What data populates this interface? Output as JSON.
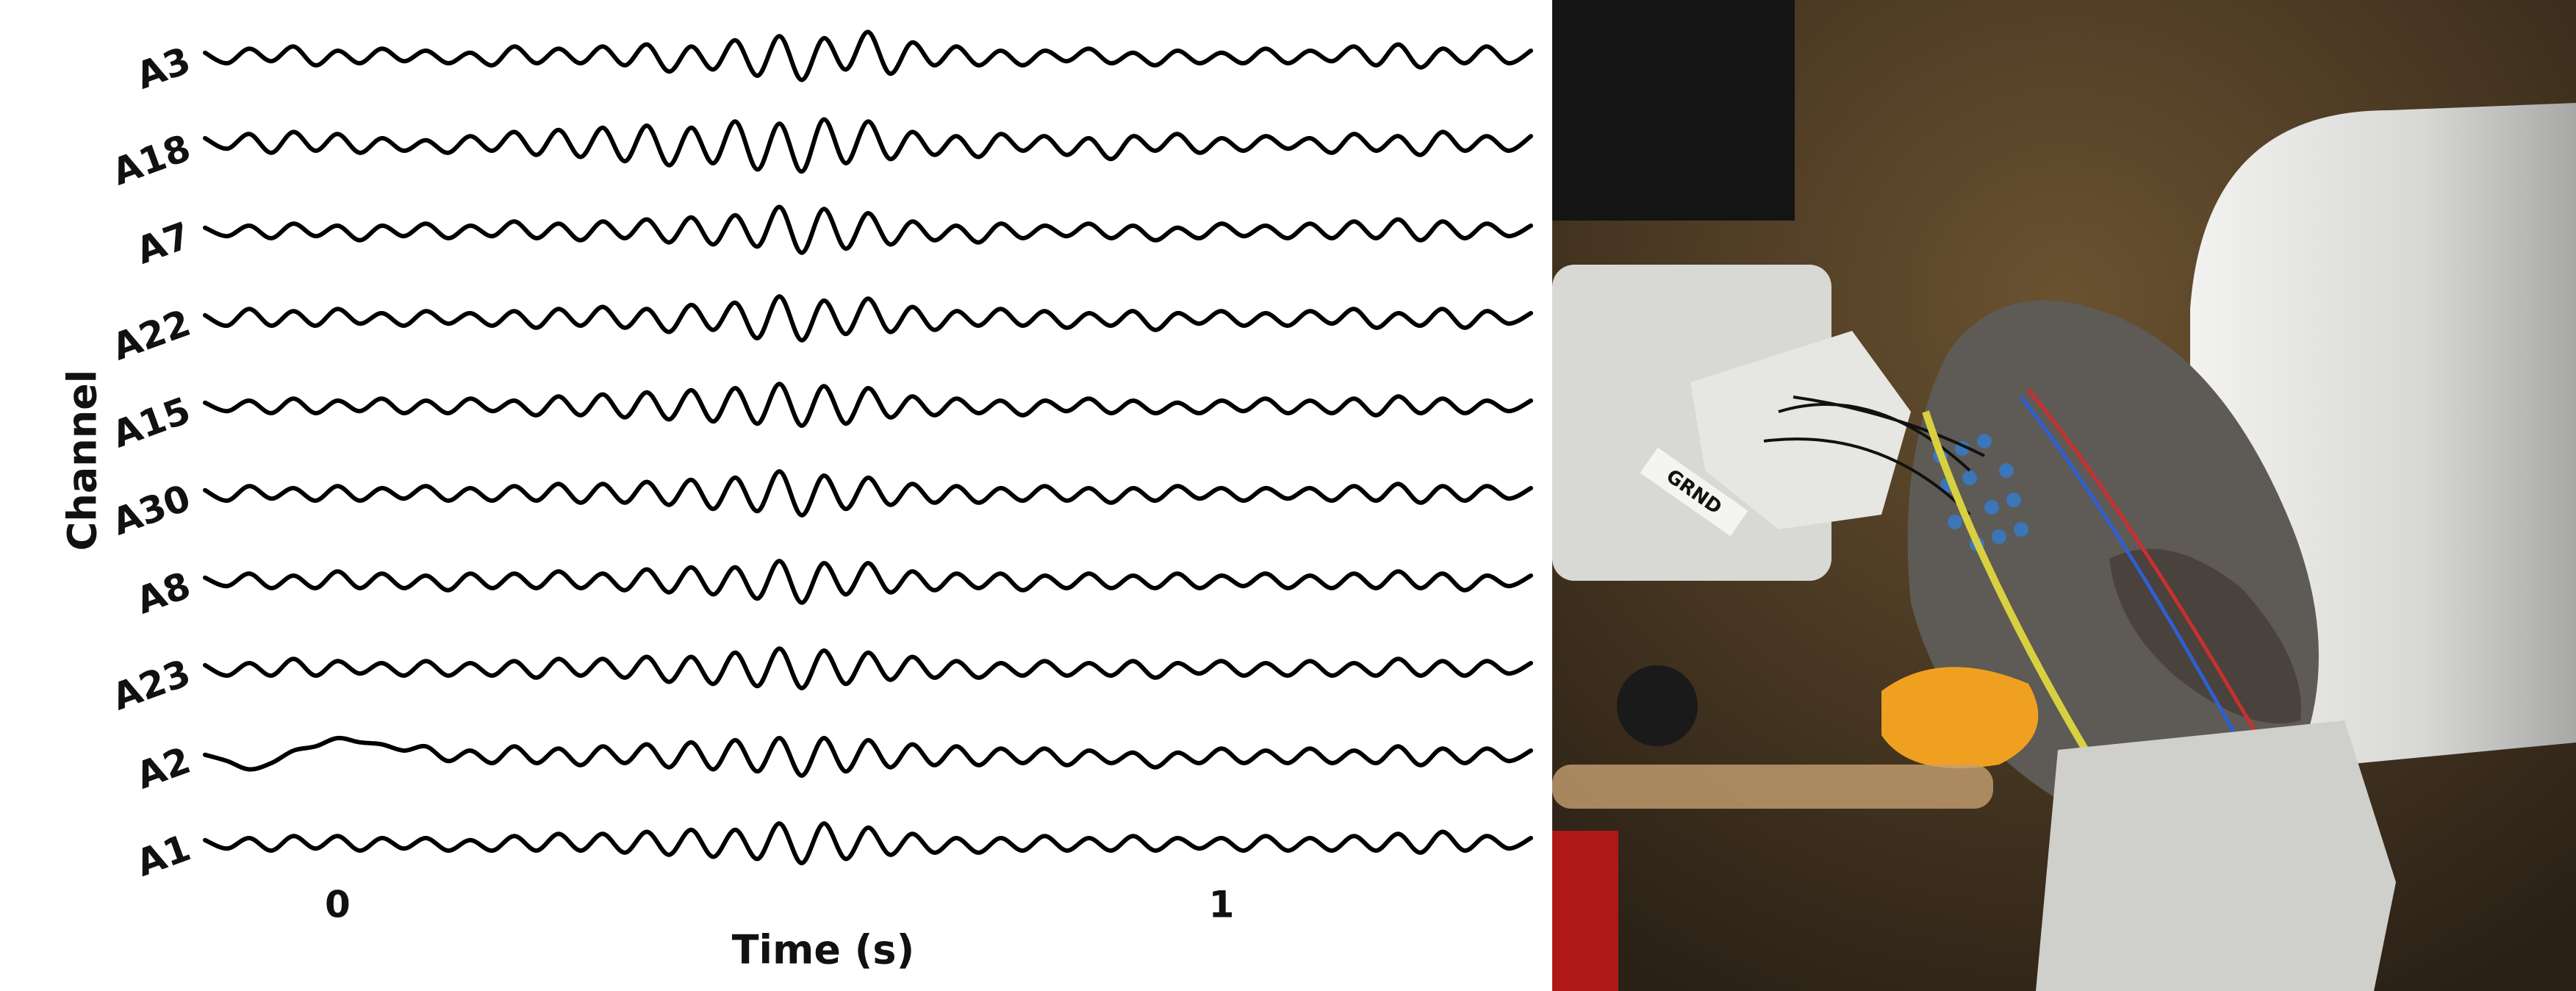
{
  "chart_data": {
    "type": "line",
    "xlabel": "Time (s)",
    "ylabel": "Channel",
    "xlim": [
      -0.16,
      1.36
    ],
    "xticks": [
      0,
      1
    ],
    "ylim": [
      -2.1,
      2.1
    ],
    "x": [
      -0.15,
      -0.125,
      -0.1,
      -0.075,
      -0.05,
      -0.025,
      0,
      0.025,
      0.05,
      0.075,
      0.1,
      0.125,
      0.15,
      0.175,
      0.2,
      0.225,
      0.25,
      0.275,
      0.3,
      0.325,
      0.35,
      0.375,
      0.4,
      0.425,
      0.45,
      0.475,
      0.5,
      0.525,
      0.55,
      0.575,
      0.6,
      0.625,
      0.65,
      0.675,
      0.7,
      0.725,
      0.75,
      0.775,
      0.8,
      0.825,
      0.85,
      0.875,
      0.9,
      0.925,
      0.95,
      0.975,
      1,
      1.025,
      1.05,
      1.075,
      1.1,
      1.125,
      1.15,
      1.175,
      1.2,
      1.225,
      1.25,
      1.275,
      1.3,
      1.325,
      1.35
    ],
    "series": [
      {
        "name": "A3",
        "color": "#000000",
        "values": [
          0.2,
          -0.3,
          0.4,
          -0.2,
          0.5,
          -0.4,
          0.3,
          -0.3,
          0.4,
          -0.2,
          0.3,
          -0.3,
          0.2,
          -0.4,
          0.5,
          -0.3,
          0.4,
          -0.3,
          0.5,
          -0.4,
          0.6,
          -0.7,
          0.5,
          -0.6,
          0.8,
          -0.9,
          1.0,
          -1.1,
          0.9,
          -0.6,
          1.2,
          -0.8,
          0.7,
          -0.4,
          0.5,
          -0.4,
          0.3,
          -0.4,
          0.3,
          -0.2,
          0.4,
          -0.3,
          0.2,
          -0.4,
          0.3,
          -0.3,
          0.2,
          -0.3,
          0.4,
          -0.3,
          0.3,
          -0.2,
          0.5,
          -0.4,
          0.6,
          -0.5,
          0.4,
          -0.3,
          0.5,
          -0.3,
          0.3
        ]
      },
      {
        "name": "A18",
        "color": "#000000",
        "values": [
          0.3,
          -0.2,
          0.5,
          -0.4,
          0.6,
          -0.3,
          0.5,
          -0.4,
          0.3,
          -0.3,
          0.2,
          -0.4,
          0.4,
          -0.3,
          0.6,
          -0.5,
          0.7,
          -0.6,
          0.8,
          -0.8,
          0.9,
          -1.0,
          0.8,
          -0.9,
          1.1,
          -1.2,
          1.0,
          -1.3,
          1.2,
          -0.9,
          1.1,
          -0.7,
          0.6,
          -0.5,
          0.4,
          -0.6,
          0.5,
          -0.3,
          0.4,
          -0.5,
          0.3,
          -0.7,
          0.4,
          -0.3,
          0.5,
          -0.4,
          0.3,
          -0.3,
          0.4,
          -0.2,
          0.3,
          -0.4,
          0.5,
          -0.3,
          0.4,
          -0.5,
          0.6,
          -0.3,
          0.4,
          -0.3,
          0.4
        ]
      },
      {
        "name": "A7",
        "color": "#000000",
        "values": [
          0.2,
          -0.2,
          0.3,
          -0.3,
          0.4,
          -0.2,
          0.3,
          -0.4,
          0.3,
          -0.2,
          0.4,
          -0.3,
          0.3,
          -0.2,
          0.5,
          -0.3,
          0.4,
          -0.4,
          0.5,
          -0.3,
          0.6,
          -0.5,
          0.7,
          -0.6,
          0.8,
          -0.7,
          1.2,
          -1.0,
          1.1,
          -0.8,
          0.9,
          -0.6,
          0.5,
          -0.4,
          0.3,
          -0.5,
          0.4,
          -0.3,
          0.3,
          -0.2,
          0.4,
          -0.3,
          0.3,
          -0.4,
          0.2,
          -0.3,
          0.4,
          -0.2,
          0.3,
          -0.3,
          0.4,
          -0.3,
          0.5,
          -0.3,
          0.6,
          -0.4,
          0.5,
          -0.3,
          0.4,
          -0.2,
          0.3
        ]
      },
      {
        "name": "A22",
        "color": "#000000",
        "values": [
          0.2,
          -0.3,
          0.5,
          -0.3,
          0.4,
          -0.3,
          0.5,
          -0.2,
          0.3,
          -0.3,
          0.4,
          -0.2,
          0.3,
          -0.3,
          0.4,
          -0.4,
          0.5,
          -0.3,
          0.6,
          -0.4,
          0.5,
          -0.6,
          0.7,
          -0.5,
          0.8,
          -0.9,
          1.1,
          -1.0,
          0.9,
          -0.7,
          1.0,
          -0.6,
          0.6,
          -0.5,
          0.4,
          -0.3,
          0.5,
          -0.3,
          0.4,
          -0.4,
          0.3,
          -0.3,
          0.4,
          -0.5,
          0.3,
          -0.2,
          0.4,
          -0.3,
          0.3,
          -0.3,
          0.4,
          -0.2,
          0.5,
          -0.4,
          0.3,
          -0.3,
          0.5,
          -0.4,
          0.4,
          -0.2,
          0.3
        ]
      },
      {
        "name": "A15",
        "color": "#000000",
        "values": [
          0.2,
          -0.2,
          0.3,
          -0.3,
          0.4,
          -0.3,
          0.3,
          -0.2,
          0.4,
          -0.3,
          0.3,
          -0.3,
          0.4,
          -0.2,
          0.3,
          -0.4,
          0.5,
          -0.4,
          0.6,
          -0.5,
          0.7,
          -0.6,
          0.8,
          -0.7,
          0.9,
          -0.8,
          1.1,
          -0.9,
          1.0,
          -0.8,
          0.9,
          -0.5,
          0.5,
          -0.4,
          0.4,
          -0.3,
          0.3,
          -0.4,
          0.3,
          -0.2,
          0.4,
          -0.3,
          0.3,
          -0.3,
          0.2,
          -0.3,
          0.3,
          -0.2,
          0.4,
          -0.3,
          0.3,
          -0.3,
          0.4,
          -0.4,
          0.5,
          -0.3,
          0.4,
          -0.3,
          0.3,
          -0.2,
          0.3
        ]
      },
      {
        "name": "A30",
        "color": "#000000",
        "values": [
          0.2,
          -0.3,
          0.4,
          -0.2,
          0.3,
          -0.3,
          0.4,
          -0.3,
          0.3,
          -0.2,
          0.4,
          -0.3,
          0.3,
          -0.3,
          0.4,
          -0.3,
          0.5,
          -0.4,
          0.5,
          -0.4,
          0.6,
          -0.5,
          0.7,
          -0.7,
          0.8,
          -0.8,
          1.1,
          -1.0,
          0.9,
          -0.7,
          0.8,
          -0.5,
          0.5,
          -0.4,
          0.4,
          -0.4,
          0.3,
          -0.3,
          0.4,
          -0.3,
          0.3,
          -0.4,
          0.3,
          -0.3,
          0.4,
          -0.2,
          0.3,
          -0.3,
          0.3,
          -0.2,
          0.3,
          -0.3,
          0.4,
          -0.3,
          0.5,
          -0.4,
          0.4,
          -0.3,
          0.4,
          -0.2,
          0.3
        ]
      },
      {
        "name": "A8",
        "color": "#000000",
        "values": [
          0.2,
          -0.2,
          0.4,
          -0.3,
          0.3,
          -0.3,
          0.5,
          -0.3,
          0.4,
          -0.3,
          0.3,
          -0.4,
          0.4,
          -0.3,
          0.4,
          -0.3,
          0.5,
          -0.3,
          0.4,
          -0.4,
          0.6,
          -0.5,
          0.7,
          -0.6,
          0.7,
          -0.8,
          1.0,
          -1.0,
          0.9,
          -0.6,
          0.9,
          -0.5,
          0.5,
          -0.4,
          0.4,
          -0.3,
          0.4,
          -0.4,
          0.3,
          -0.3,
          0.4,
          -0.3,
          0.3,
          -0.3,
          0.4,
          -0.3,
          0.3,
          -0.2,
          0.4,
          -0.3,
          0.3,
          -0.3,
          0.4,
          -0.3,
          0.5,
          -0.3,
          0.4,
          -0.4,
          0.3,
          -0.2,
          0.3
        ]
      },
      {
        "name": "A23",
        "color": "#000000",
        "values": [
          0.2,
          -0.3,
          0.3,
          -0.3,
          0.5,
          -0.3,
          0.4,
          -0.2,
          0.3,
          -0.3,
          0.4,
          -0.3,
          0.3,
          -0.3,
          0.4,
          -0.4,
          0.5,
          -0.3,
          0.5,
          -0.4,
          0.6,
          -0.6,
          0.6,
          -0.7,
          0.8,
          -0.8,
          1.0,
          -0.9,
          0.9,
          -0.7,
          0.8,
          -0.5,
          0.6,
          -0.4,
          0.4,
          -0.4,
          0.3,
          -0.3,
          0.4,
          -0.3,
          0.3,
          -0.3,
          0.4,
          -0.4,
          0.3,
          -0.2,
          0.4,
          -0.3,
          0.3,
          -0.3,
          0.4,
          -0.3,
          0.3,
          -0.3,
          0.5,
          -0.3,
          0.4,
          -0.3,
          0.4,
          -0.2,
          0.3
        ]
      },
      {
        "name": "A2",
        "color": "#000000",
        "values": [
          0.1,
          -0.2,
          -0.6,
          -0.3,
          0.3,
          0.5,
          0.9,
          0.7,
          0.6,
          0.3,
          0.5,
          -0.2,
          0.3,
          -0.3,
          0.5,
          -0.3,
          0.4,
          -0.4,
          0.5,
          -0.3,
          0.6,
          -0.5,
          0.7,
          -0.6,
          0.8,
          -0.7,
          0.9,
          -0.9,
          0.9,
          -0.7,
          0.8,
          -0.5,
          0.6,
          -0.4,
          0.5,
          -0.4,
          0.4,
          -0.3,
          0.4,
          -0.4,
          0.3,
          -0.3,
          0.2,
          -0.5,
          0.2,
          -0.3,
          0.4,
          -0.3,
          0.3,
          -0.3,
          0.4,
          -0.3,
          0.3,
          -0.3,
          0.5,
          -0.4,
          0.4,
          -0.3,
          0.4,
          -0.2,
          0.3
        ]
      },
      {
        "name": "A1",
        "color": "#000000",
        "values": [
          0.2,
          -0.2,
          0.3,
          -0.3,
          0.4,
          -0.2,
          0.4,
          -0.3,
          0.3,
          -0.2,
          0.3,
          -0.3,
          0.2,
          -0.3,
          0.4,
          -0.3,
          0.5,
          -0.3,
          0.5,
          -0.4,
          0.6,
          -0.5,
          0.7,
          -0.6,
          0.7,
          -0.7,
          1.0,
          -0.9,
          1.0,
          -0.7,
          0.8,
          -0.5,
          0.5,
          -0.4,
          0.3,
          -0.4,
          0.3,
          -0.3,
          0.4,
          -0.3,
          0.3,
          -0.3,
          0.4,
          -0.3,
          0.3,
          -0.2,
          0.3,
          -0.3,
          0.4,
          -0.3,
          0.3,
          -0.3,
          0.4,
          -0.3,
          0.5,
          -0.4,
          0.6,
          -0.3,
          0.4,
          -0.2,
          0.3
        ]
      }
    ],
    "photo_label": "GRND"
  }
}
